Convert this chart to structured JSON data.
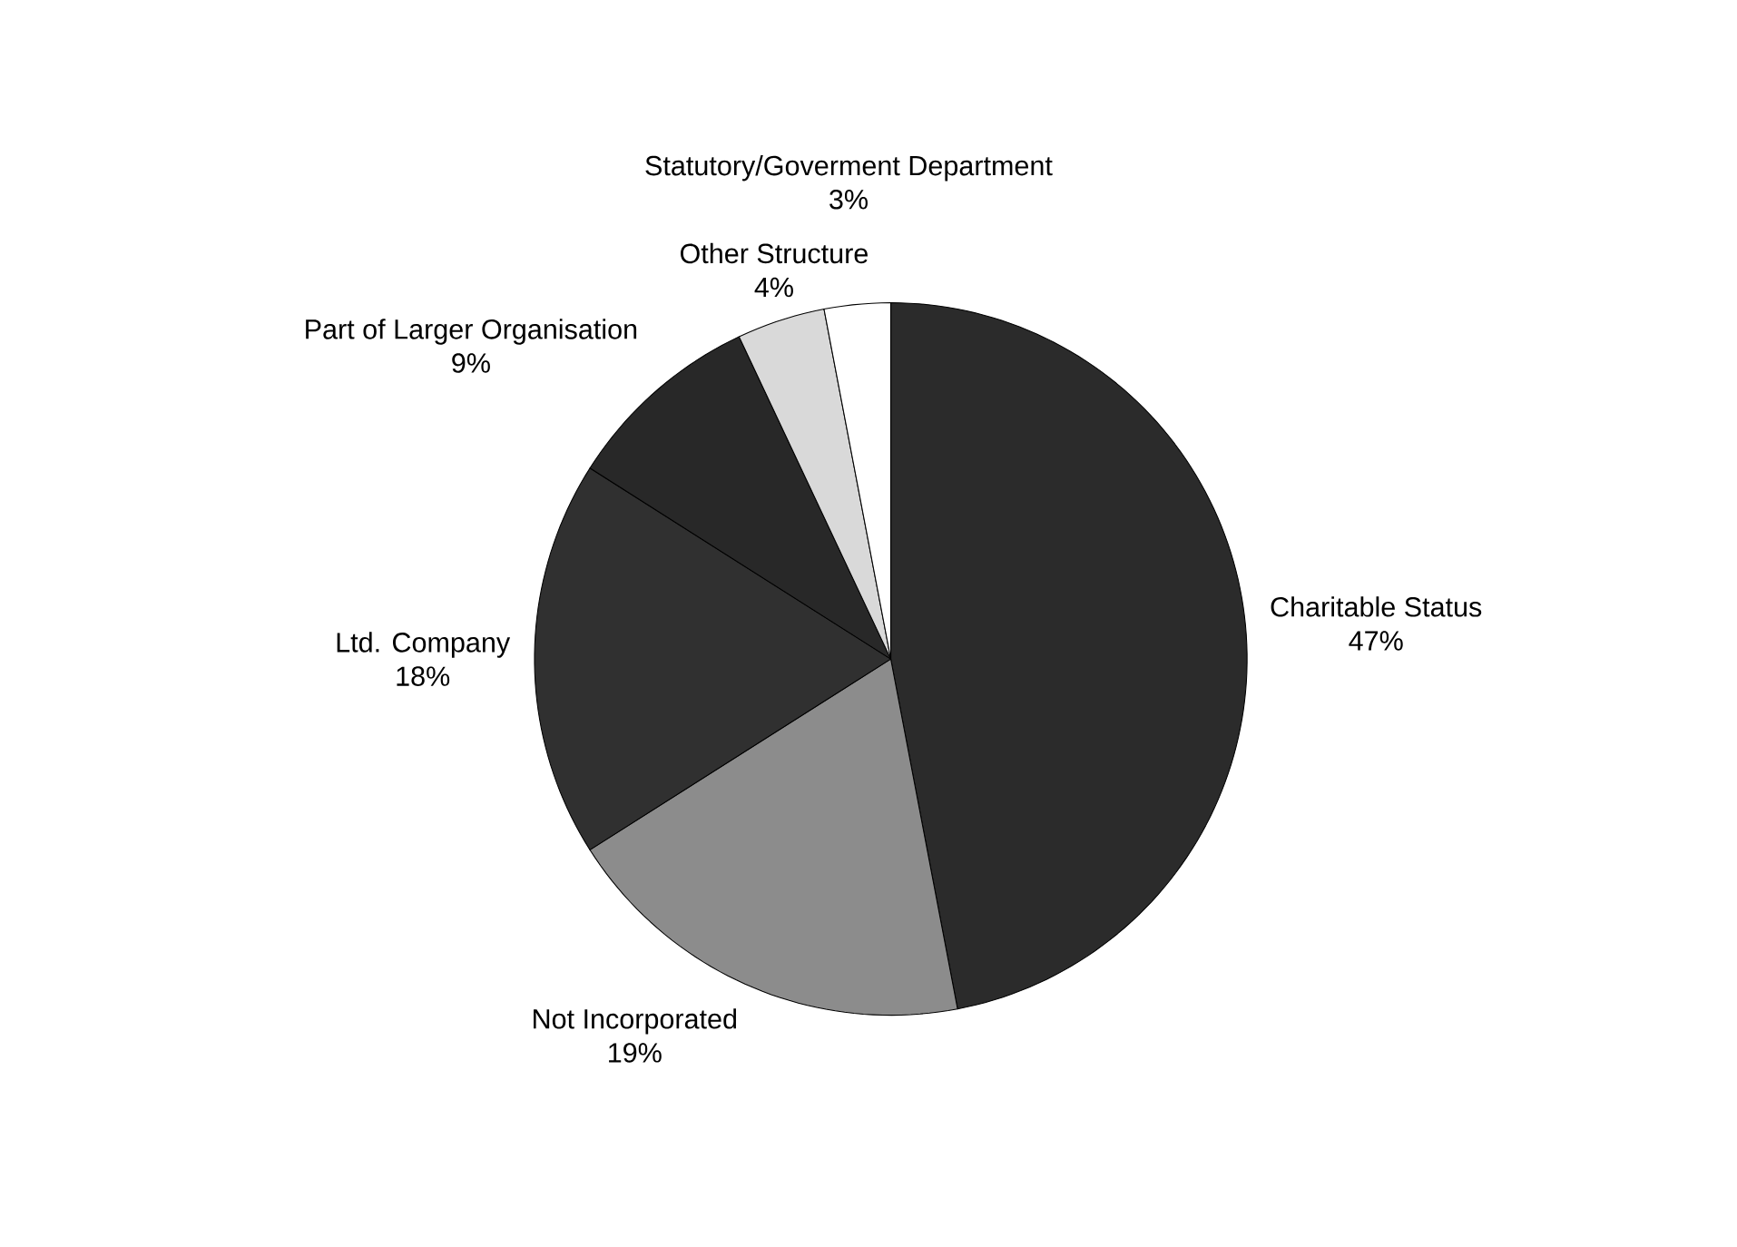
{
  "chart_data": {
    "type": "pie",
    "categories": [
      "Charitable Status",
      "Not Incorporated",
      "Ltd. Company",
      "Part of Larger Organisation",
      "Other Structure",
      "Statutory/Goverment Department"
    ],
    "values": [
      47,
      19,
      18,
      9,
      4,
      3
    ],
    "value_labels": [
      "47%",
      "19%",
      "18%",
      "9%",
      "4%",
      "3%"
    ],
    "colors": [
      "#2b2b2b",
      "#8c8c8c",
      "#303030",
      "#282828",
      "#d9d9d9",
      "#ffffff"
    ]
  }
}
